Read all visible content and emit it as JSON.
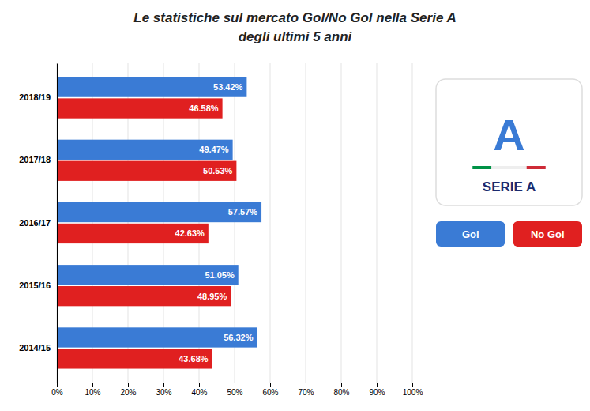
{
  "chart_data": {
    "type": "bar",
    "orientation": "horizontal",
    "title": "Le statistiche sul mercato Gol/No Gol nella Serie A",
    "subtitle": "degli ultimi 5 anni",
    "categories": [
      "2018/19",
      "2017/18",
      "2016/17",
      "2015/16",
      "2014/15"
    ],
    "series": [
      {
        "name": "Gol",
        "color": "#3a7bd5",
        "values": [
          53.42,
          49.47,
          57.57,
          51.05,
          56.32
        ],
        "value_labels": [
          "53.42%",
          "49.47%",
          "57.57%",
          "51.05%",
          "56.32%"
        ]
      },
      {
        "name": "No Gol",
        "color": "#e02020",
        "values": [
          46.58,
          50.53,
          42.63,
          48.95,
          43.68
        ],
        "value_labels": [
          "46.58%",
          "50.53%",
          "42.63%",
          "48.95%",
          "43.68%"
        ]
      }
    ],
    "xlim": [
      0,
      100
    ],
    "xticks": [
      {
        "value": 0,
        "label": "0%"
      },
      {
        "value": 10,
        "label": "10%"
      },
      {
        "value": 20,
        "label": "20%"
      },
      {
        "value": 30,
        "label": "30%"
      },
      {
        "value": 40,
        "label": "40%"
      },
      {
        "value": 50,
        "label": "50%"
      },
      {
        "value": 60,
        "label": "60%"
      },
      {
        "value": 70,
        "label": "70%"
      },
      {
        "value": 80,
        "label": "80%"
      },
      {
        "value": 90,
        "label": "90%"
      },
      {
        "value": 100,
        "label": "100%"
      }
    ],
    "grid": true,
    "legend": "right",
    "data_labels": true,
    "annotations": [
      "A",
      "SERIE A"
    ]
  }
}
